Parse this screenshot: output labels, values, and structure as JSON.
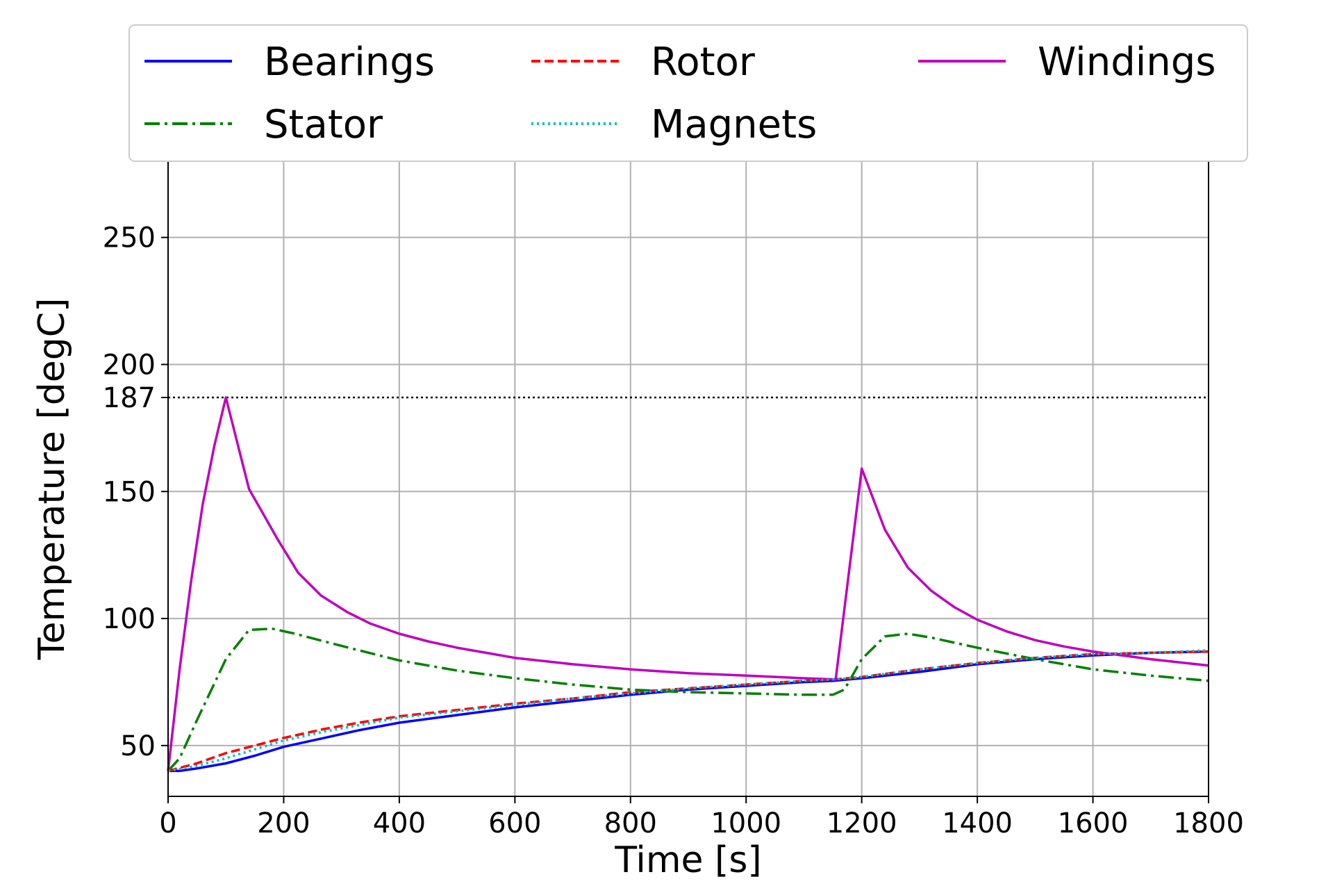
{
  "chart_data": {
    "type": "line",
    "xlabel": "Time [s]",
    "ylabel": "Temperature [degC]",
    "xlim": [
      0,
      1800
    ],
    "ylim": [
      30,
      280
    ],
    "xticks": [
      0,
      200,
      400,
      600,
      800,
      1000,
      1200,
      1400,
      1600,
      1800
    ],
    "yticks": [
      50,
      100,
      150,
      187,
      200,
      250
    ],
    "grid": true,
    "legend": {
      "placement": "top",
      "columns": 3
    },
    "reference_line": {
      "y": 187,
      "style": "dotted",
      "color": "#000000"
    },
    "series": [
      {
        "name": "Bearings",
        "color": "#0000ff",
        "style": "solid",
        "points": [
          [
            0,
            40
          ],
          [
            20,
            40
          ],
          [
            50,
            41
          ],
          [
            100,
            43
          ],
          [
            150,
            46
          ],
          [
            200,
            49.5
          ],
          [
            270,
            53
          ],
          [
            330,
            56
          ],
          [
            400,
            59
          ],
          [
            500,
            62
          ],
          [
            600,
            65
          ],
          [
            700,
            67.5
          ],
          [
            800,
            70
          ],
          [
            900,
            72
          ],
          [
            1000,
            73.5
          ],
          [
            1100,
            75
          ],
          [
            1150,
            75.5
          ],
          [
            1200,
            76.5
          ],
          [
            1300,
            79
          ],
          [
            1400,
            82
          ],
          [
            1500,
            84
          ],
          [
            1600,
            85.5
          ],
          [
            1700,
            86.5
          ],
          [
            1800,
            87
          ]
        ]
      },
      {
        "name": "Rotor",
        "color": "#ff0000",
        "style": "dashed",
        "points": [
          [
            0,
            40
          ],
          [
            50,
            43
          ],
          [
            100,
            47
          ],
          [
            150,
            50
          ],
          [
            200,
            53
          ],
          [
            270,
            56.5
          ],
          [
            330,
            59
          ],
          [
            400,
            61.5
          ],
          [
            500,
            64
          ],
          [
            600,
            66.5
          ],
          [
            700,
            68.5
          ],
          [
            800,
            71
          ],
          [
            900,
            72.5
          ],
          [
            1000,
            74
          ],
          [
            1100,
            75.5
          ],
          [
            1150,
            76
          ],
          [
            1200,
            77
          ],
          [
            1300,
            80
          ],
          [
            1400,
            82.5
          ],
          [
            1500,
            84.5
          ],
          [
            1600,
            86
          ],
          [
            1700,
            86.5
          ],
          [
            1800,
            87
          ]
        ]
      },
      {
        "name": "Windings",
        "color": "#bf00bf",
        "style": "solid",
        "points": [
          [
            0,
            40
          ],
          [
            20,
            80
          ],
          [
            40,
            115
          ],
          [
            60,
            145
          ],
          [
            80,
            168
          ],
          [
            100,
            187
          ],
          [
            140,
            151
          ],
          [
            190,
            131
          ],
          [
            225,
            118
          ],
          [
            265,
            109
          ],
          [
            310,
            102.5
          ],
          [
            350,
            98
          ],
          [
            400,
            94
          ],
          [
            450,
            91
          ],
          [
            500,
            88.5
          ],
          [
            550,
            86.5
          ],
          [
            600,
            84.5
          ],
          [
            700,
            82
          ],
          [
            800,
            80
          ],
          [
            900,
            78.5
          ],
          [
            1000,
            77.5
          ],
          [
            1100,
            76.5
          ],
          [
            1155,
            76
          ],
          [
            1200,
            159
          ],
          [
            1240,
            135
          ],
          [
            1280,
            120
          ],
          [
            1320,
            111
          ],
          [
            1360,
            104.5
          ],
          [
            1400,
            99.5
          ],
          [
            1450,
            95
          ],
          [
            1500,
            91.5
          ],
          [
            1550,
            89
          ],
          [
            1600,
            87
          ],
          [
            1700,
            84
          ],
          [
            1800,
            81.5
          ]
        ]
      },
      {
        "name": "Stator",
        "color": "#008000",
        "style": "dashdot",
        "points": [
          [
            0,
            40
          ],
          [
            20,
            45
          ],
          [
            50,
            60
          ],
          [
            100,
            84
          ],
          [
            140,
            95.5
          ],
          [
            180,
            96
          ],
          [
            220,
            94
          ],
          [
            270,
            91
          ],
          [
            330,
            87.5
          ],
          [
            400,
            83.5
          ],
          [
            500,
            79.5
          ],
          [
            600,
            76.5
          ],
          [
            700,
            74
          ],
          [
            800,
            72
          ],
          [
            900,
            71
          ],
          [
            1000,
            70.5
          ],
          [
            1100,
            70
          ],
          [
            1150,
            70
          ],
          [
            1170,
            72
          ],
          [
            1200,
            84
          ],
          [
            1240,
            93
          ],
          [
            1280,
            94
          ],
          [
            1320,
            92.5
          ],
          [
            1400,
            88.5
          ],
          [
            1500,
            84
          ],
          [
            1600,
            80
          ],
          [
            1700,
            77.5
          ],
          [
            1800,
            75.5
          ]
        ]
      },
      {
        "name": "Magnets",
        "color": "#00bfbf",
        "style": "dotted",
        "points": [
          [
            0,
            40
          ],
          [
            50,
            42
          ],
          [
            100,
            45
          ],
          [
            150,
            48.5
          ],
          [
            200,
            52
          ],
          [
            270,
            55.5
          ],
          [
            330,
            58
          ],
          [
            400,
            61
          ],
          [
            500,
            63.5
          ],
          [
            600,
            66
          ],
          [
            700,
            68.5
          ],
          [
            800,
            70.5
          ],
          [
            900,
            72.5
          ],
          [
            1000,
            74
          ],
          [
            1100,
            75.5
          ],
          [
            1150,
            76
          ],
          [
            1200,
            77
          ],
          [
            1300,
            80
          ],
          [
            1400,
            82.5
          ],
          [
            1500,
            84.5
          ],
          [
            1600,
            86
          ],
          [
            1700,
            86.5
          ],
          [
            1800,
            87.5
          ]
        ]
      }
    ]
  }
}
